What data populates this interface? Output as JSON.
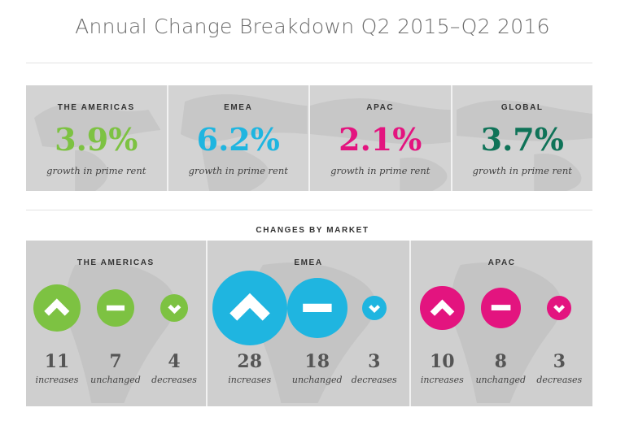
{
  "title": "Annual Change Breakdown Q2 2015–Q2 2016",
  "rent_growth": {
    "description": "growth in prime rent",
    "regions": [
      {
        "name": "THE AMERICAS",
        "value": "3.9%",
        "color": "#7dc242"
      },
      {
        "name": "EMEA",
        "value": "6.2%",
        "color": "#1fb5e0"
      },
      {
        "name": "APAC",
        "value": "2.1%",
        "color": "#e3147f"
      },
      {
        "name": "GLOBAL",
        "value": "3.7%",
        "color": "#0f7358"
      }
    ]
  },
  "changes_by_market": {
    "title": "CHANGES BY MARKET",
    "labels": {
      "increases": "increases",
      "unchanged": "unchanged",
      "decreases": "decreases"
    },
    "icons": {
      "increases": "chevron-up-icon",
      "unchanged": "minus-icon",
      "decreases": "chevron-down-icon"
    }
  },
  "chart_data": {
    "type": "bubble",
    "categories": [
      "increases",
      "unchanged",
      "decreases"
    ],
    "series": [
      {
        "name": "THE AMERICAS",
        "values": [
          11,
          7,
          4
        ],
        "color": "#7dc242"
      },
      {
        "name": "EMEA",
        "values": [
          28,
          18,
          3
        ],
        "color": "#1fb5e0"
      },
      {
        "name": "APAC",
        "values": [
          10,
          8,
          3
        ],
        "color": "#e3147f"
      }
    ]
  }
}
